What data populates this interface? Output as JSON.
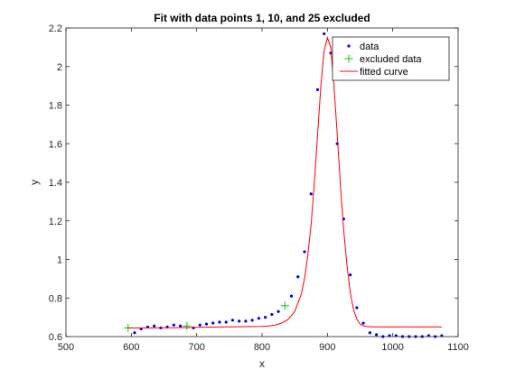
{
  "chart_data": {
    "type": "scatter",
    "title": "Fit with data points 1, 10, and 25 excluded",
    "xlabel": "x",
    "ylabel": "y",
    "xlim": [
      500,
      1100
    ],
    "ylim": [
      0.6,
      2.2
    ],
    "xticks": [
      "500",
      "600",
      "700",
      "800",
      "900",
      "1000",
      "1100"
    ],
    "yticks": [
      "0.6",
      "0.8",
      "1",
      "1.2",
      "1.4",
      "1.6",
      "1.8",
      "2",
      "2.2"
    ],
    "grid": false,
    "legend_position": "top-right",
    "series": [
      {
        "name": "data",
        "kind": "points",
        "color": "#0000ff",
        "x": [
          605,
          615,
          625,
          635,
          645,
          655,
          665,
          675,
          695,
          705,
          715,
          725,
          735,
          745,
          755,
          765,
          775,
          785,
          795,
          805,
          815,
          825,
          845,
          855,
          865,
          875,
          885,
          895,
          905,
          915,
          925,
          935,
          945,
          955,
          965,
          975,
          985,
          995,
          1005,
          1015,
          1025,
          1035,
          1045,
          1055,
          1065,
          1075
        ],
        "y": [
          0.62,
          0.64,
          0.65,
          0.655,
          0.645,
          0.65,
          0.66,
          0.655,
          0.645,
          0.66,
          0.665,
          0.67,
          0.675,
          0.675,
          0.685,
          0.68,
          0.68,
          0.685,
          0.695,
          0.7,
          0.715,
          0.73,
          0.81,
          0.91,
          1.04,
          1.34,
          1.88,
          2.17,
          2.07,
          1.6,
          1.21,
          0.92,
          0.75,
          0.67,
          0.62,
          0.61,
          0.6,
          0.605,
          0.605,
          0.6,
          0.6,
          0.6,
          0.6,
          0.605,
          0.6,
          0.605
        ]
      },
      {
        "name": "excluded data",
        "kind": "plus",
        "color": "#00cc00",
        "x": [
          595,
          685,
          835
        ],
        "y": [
          0.645,
          0.655,
          0.76
        ]
      },
      {
        "name": "fitted curve",
        "kind": "line",
        "color": "#ff0000",
        "x": [
          595,
          620,
          650,
          680,
          700,
          720,
          740,
          760,
          780,
          800,
          810,
          820,
          830,
          840,
          850,
          860,
          865,
          870,
          875,
          880,
          885,
          890,
          895,
          900,
          905,
          910,
          915,
          920,
          925,
          930,
          935,
          940,
          945,
          950,
          955,
          960,
          970,
          980,
          1000,
          1040,
          1075
        ],
        "y": [
          0.645,
          0.645,
          0.646,
          0.647,
          0.648,
          0.649,
          0.65,
          0.651,
          0.652,
          0.653,
          0.655,
          0.66,
          0.67,
          0.69,
          0.73,
          0.82,
          0.9,
          1.02,
          1.18,
          1.4,
          1.65,
          1.9,
          2.08,
          2.15,
          2.1,
          1.9,
          1.65,
          1.38,
          1.15,
          0.97,
          0.83,
          0.74,
          0.69,
          0.665,
          0.656,
          0.652,
          0.65,
          0.65,
          0.65,
          0.65,
          0.65
        ]
      }
    ]
  }
}
